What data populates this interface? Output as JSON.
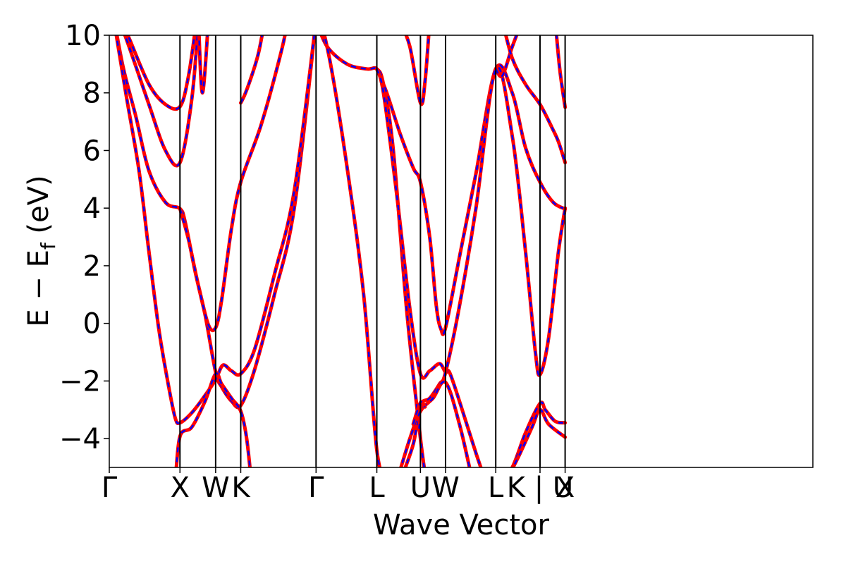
{
  "chart_data": {
    "type": "line",
    "title": "",
    "xlabel": "Wave Vector",
    "ylabel_parts": {
      "pre": "E − E",
      "sub": "f",
      "post": " (eV)"
    },
    "ylim": [
      -5,
      10
    ],
    "yticks": [
      -4,
      -2,
      0,
      2,
      4,
      6,
      8,
      10
    ],
    "ytick_labels": [
      "−4",
      "−2",
      "0",
      "2",
      "4",
      "6",
      "8",
      "10"
    ],
    "xlim": [
      0,
      10.65
    ],
    "kpoints": [
      {
        "label": "Γ",
        "x": 0.0
      },
      {
        "label": "X",
        "x": 1.07
      },
      {
        "label": "W",
        "x": 1.61
      },
      {
        "label": "K",
        "x": 1.99
      },
      {
        "label": "Γ",
        "x": 3.13
      },
      {
        "label": "L",
        "x": 4.05
      },
      {
        "label": "U",
        "x": 4.71
      },
      {
        "label": "W",
        "x": 5.09
      },
      {
        "label": "L",
        "x": 5.85
      },
      {
        "label": "K | U",
        "x": 6.52
      },
      {
        "label": "X",
        "x": 6.9
      }
    ],
    "grid": false,
    "series_styles": [
      {
        "style": "solid",
        "color": "#ff0000"
      },
      {
        "style": "dashed",
        "color": "#0000ff"
      }
    ],
    "bands": [
      [
        [
          0.0,
          11.5
        ],
        [
          0.3,
          9.6
        ],
        [
          0.6,
          7.6
        ],
        [
          0.85,
          6.0
        ],
        [
          1.07,
          5.58
        ],
        [
          1.25,
          7.8
        ],
        [
          1.35,
          10.5
        ]
      ],
      [
        [
          0.0,
          11.5
        ],
        [
          0.3,
          9.9
        ],
        [
          0.6,
          8.3
        ],
        [
          0.85,
          7.6
        ],
        [
          1.07,
          7.52
        ],
        [
          1.2,
          8.6
        ],
        [
          1.32,
          10.5
        ]
      ],
      [
        [
          0.0,
          11.5
        ],
        [
          0.2,
          9.0
        ],
        [
          0.4,
          7.2
        ],
        [
          0.6,
          5.3
        ],
        [
          0.85,
          4.2
        ],
        [
          1.07,
          3.98
        ],
        [
          1.15,
          3.5
        ],
        [
          1.3,
          1.8
        ],
        [
          1.45,
          0.3
        ],
        [
          1.61,
          -1.7
        ],
        [
          1.7,
          -2.2
        ],
        [
          1.85,
          -2.7
        ],
        [
          1.99,
          -2.85
        ],
        [
          2.2,
          -1.6
        ],
        [
          2.5,
          1.0
        ],
        [
          2.8,
          4.0
        ],
        [
          3.13,
          10.5
        ]
      ],
      [
        [
          0.0,
          11.5
        ],
        [
          0.25,
          8.0
        ],
        [
          0.45,
          5.3
        ],
        [
          0.6,
          2.5
        ],
        [
          0.75,
          -0.2
        ],
        [
          0.9,
          -2.2
        ],
        [
          1.0,
          -3.3
        ],
        [
          1.07,
          -3.45
        ],
        [
          1.25,
          -3.1
        ],
        [
          1.45,
          -2.5
        ],
        [
          1.61,
          -1.95
        ],
        [
          1.72,
          -1.45
        ],
        [
          1.85,
          -1.65
        ],
        [
          1.99,
          -1.75
        ],
        [
          2.2,
          -0.9
        ],
        [
          2.5,
          1.7
        ],
        [
          2.8,
          4.6
        ],
        [
          3.13,
          10.5
        ]
      ],
      [
        [
          1.0,
          -5.5
        ],
        [
          1.07,
          -3.92
        ],
        [
          1.25,
          -3.6
        ],
        [
          1.45,
          -2.7
        ],
        [
          1.61,
          -1.75
        ],
        [
          1.7,
          -2.1
        ],
        [
          1.85,
          -2.6
        ],
        [
          1.99,
          -3.05
        ],
        [
          2.08,
          -4.0
        ],
        [
          2.15,
          -5.5
        ]
      ],
      [
        [
          1.07,
          3.98
        ],
        [
          1.2,
          2.9
        ],
        [
          1.35,
          1.3
        ],
        [
          1.5,
          -0.05
        ],
        [
          1.61,
          -0.15
        ],
        [
          1.7,
          0.8
        ],
        [
          1.85,
          3.3
        ],
        [
          1.99,
          4.9
        ],
        [
          2.3,
          6.9
        ],
        [
          2.6,
          9.4
        ],
        [
          2.7,
          10.5
        ]
      ],
      [
        [
          1.99,
          7.65
        ],
        [
          2.08,
          8.1
        ],
        [
          2.25,
          9.3
        ],
        [
          2.35,
          10.5
        ]
      ],
      [
        [
          1.35,
          10.5
        ],
        [
          1.41,
          8.0
        ],
        [
          1.5,
          10.5
        ]
      ],
      [
        [
          3.13,
          10.5
        ],
        [
          3.3,
          9.6
        ],
        [
          3.6,
          9.0
        ],
        [
          3.9,
          8.83
        ],
        [
          4.05,
          8.83
        ],
        [
          4.15,
          8.3
        ],
        [
          4.3,
          6.0
        ],
        [
          4.5,
          0.5
        ],
        [
          4.71,
          -4.0
        ],
        [
          4.8,
          -5.5
        ]
      ],
      [
        [
          3.13,
          11.2
        ],
        [
          3.35,
          9.0
        ],
        [
          3.6,
          5.4
        ],
        [
          3.85,
          1.0
        ],
        [
          4.05,
          -4.4
        ],
        [
          4.2,
          -5.5
        ]
      ],
      [
        [
          4.05,
          8.83
        ],
        [
          4.2,
          8.0
        ],
        [
          4.4,
          6.6
        ],
        [
          4.6,
          5.4
        ],
        [
          4.71,
          4.9
        ],
        [
          4.85,
          3.0
        ],
        [
          4.95,
          0.6
        ],
        [
          5.02,
          -0.2
        ],
        [
          5.09,
          -0.15
        ],
        [
          5.3,
          2.3
        ],
        [
          5.55,
          5.2
        ],
        [
          5.85,
          8.83
        ],
        [
          6.1,
          8.0
        ],
        [
          6.3,
          6.1
        ],
        [
          6.52,
          4.9
        ],
        [
          6.72,
          4.2
        ],
        [
          6.9,
          3.97
        ]
      ],
      [
        [
          4.05,
          8.83
        ],
        [
          4.15,
          8.0
        ],
        [
          4.35,
          4.5
        ],
        [
          4.55,
          0.5
        ],
        [
          4.71,
          -1.75
        ],
        [
          4.85,
          -1.65
        ],
        [
          5.0,
          -1.4
        ],
        [
          5.09,
          -1.7
        ],
        [
          5.15,
          -1.7
        ],
        [
          5.3,
          -2.7
        ],
        [
          5.55,
          -4.5
        ],
        [
          5.7,
          -5.5
        ]
      ],
      [
        [
          4.4,
          -5.5
        ],
        [
          4.6,
          -4.2
        ],
        [
          4.71,
          -2.85
        ],
        [
          4.85,
          -2.6
        ],
        [
          5.0,
          -2.1
        ],
        [
          5.09,
          -1.7
        ],
        [
          5.3,
          0.6
        ],
        [
          5.55,
          4.0
        ],
        [
          5.85,
          8.83
        ],
        [
          6.1,
          6.5
        ],
        [
          6.3,
          2.5
        ],
        [
          6.45,
          -1.0
        ],
        [
          6.52,
          -1.78
        ],
        [
          6.65,
          -0.5
        ],
        [
          6.8,
          2.5
        ],
        [
          6.9,
          4.0
        ]
      ],
      [
        [
          4.35,
          -5.5
        ],
        [
          4.55,
          -4.0
        ],
        [
          4.71,
          -3.05
        ],
        [
          4.9,
          -2.6
        ],
        [
          5.09,
          -2.05
        ],
        [
          5.3,
          -3.5
        ],
        [
          5.5,
          -5.5
        ]
      ],
      [
        [
          4.6,
          -3.5
        ],
        [
          4.71,
          -2.75
        ],
        [
          4.78,
          -2.9
        ]
      ],
      [
        [
          5.85,
          8.83
        ],
        [
          5.95,
          8.6
        ],
        [
          6.1,
          9.6
        ],
        [
          6.25,
          10.5
        ]
      ],
      [
        [
          5.9,
          -5.5
        ],
        [
          6.1,
          -5.0
        ],
        [
          6.3,
          -3.8
        ],
        [
          6.52,
          -2.78
        ],
        [
          6.6,
          -3.0
        ],
        [
          6.75,
          -3.4
        ],
        [
          6.9,
          -3.45
        ]
      ],
      [
        [
          6.0,
          -5.5
        ],
        [
          6.2,
          -4.6
        ],
        [
          6.4,
          -3.6
        ],
        [
          6.52,
          -3.0
        ],
        [
          6.65,
          -3.5
        ],
        [
          6.9,
          -3.95
        ]
      ],
      [
        [
          5.95,
          10.5
        ],
        [
          6.1,
          9.2
        ],
        [
          6.3,
          8.3
        ],
        [
          6.52,
          7.6
        ],
        [
          6.7,
          6.8
        ],
        [
          6.8,
          6.3
        ],
        [
          6.9,
          5.58
        ]
      ],
      [
        [
          4.4,
          10.5
        ],
        [
          4.55,
          9.6
        ],
        [
          4.71,
          7.65
        ],
        [
          4.78,
          8.4
        ],
        [
          4.85,
          10.5
        ]
      ],
      [
        [
          6.9,
          7.5
        ],
        [
          6.82,
          8.8
        ],
        [
          6.75,
          10.5
        ]
      ]
    ]
  }
}
